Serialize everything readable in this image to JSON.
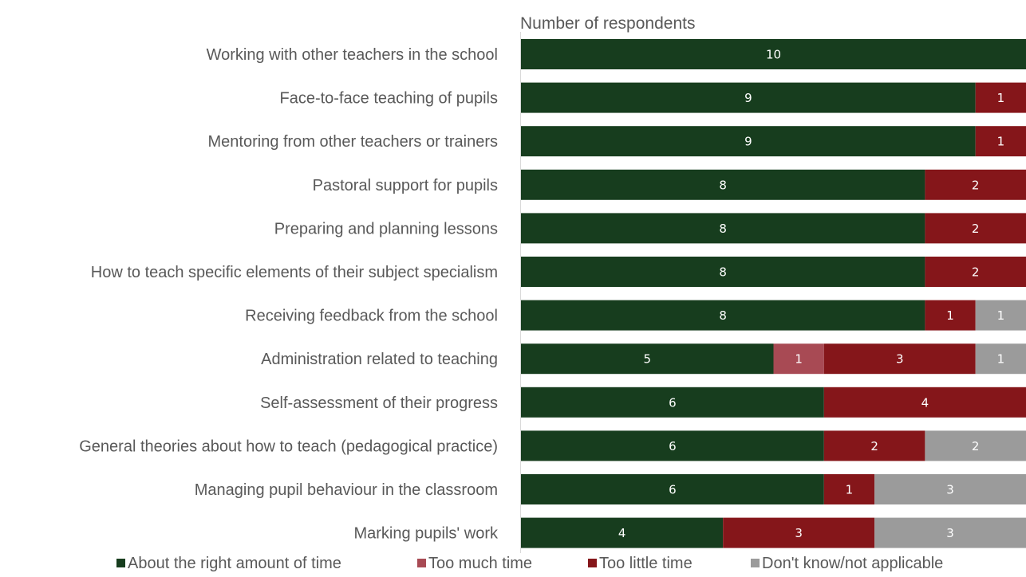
{
  "chart_data": {
    "type": "bar",
    "orientation": "horizontal",
    "stacked": true,
    "axis_title": "Number of respondents",
    "xlim": [
      0,
      10
    ],
    "categories": [
      "Working with other teachers in the school",
      "Face-to-face teaching of pupils",
      "Mentoring from other teachers or trainers",
      "Pastoral support for pupils",
      "Preparing and planning lessons",
      "How to teach specific elements of their subject specialism",
      "Receiving feedback from the school",
      "Administration related to teaching",
      "Self-assessment of their progress",
      "General theories about how to teach (pedagogical practice)",
      "Managing pupil behaviour in the classroom",
      "Marking pupils' work"
    ],
    "series": [
      {
        "name": "About the right amount of time",
        "color": "#173d1e",
        "values": [
          10,
          9,
          9,
          8,
          8,
          8,
          8,
          5,
          6,
          6,
          6,
          4
        ]
      },
      {
        "name": "Too much time",
        "color": "#a84a54",
        "values": [
          0,
          0,
          0,
          0,
          0,
          0,
          0,
          1,
          0,
          0,
          0,
          0
        ]
      },
      {
        "name": "Too little time",
        "color": "#85161a",
        "values": [
          0,
          1,
          1,
          2,
          2,
          2,
          1,
          3,
          4,
          2,
          1,
          3
        ]
      },
      {
        "name": "Don't know/not applicable",
        "color": "#9b9b9b",
        "values": [
          0,
          0,
          0,
          0,
          0,
          0,
          1,
          1,
          0,
          2,
          3,
          3
        ]
      }
    ],
    "legend_position": "bottom",
    "grid": false
  }
}
